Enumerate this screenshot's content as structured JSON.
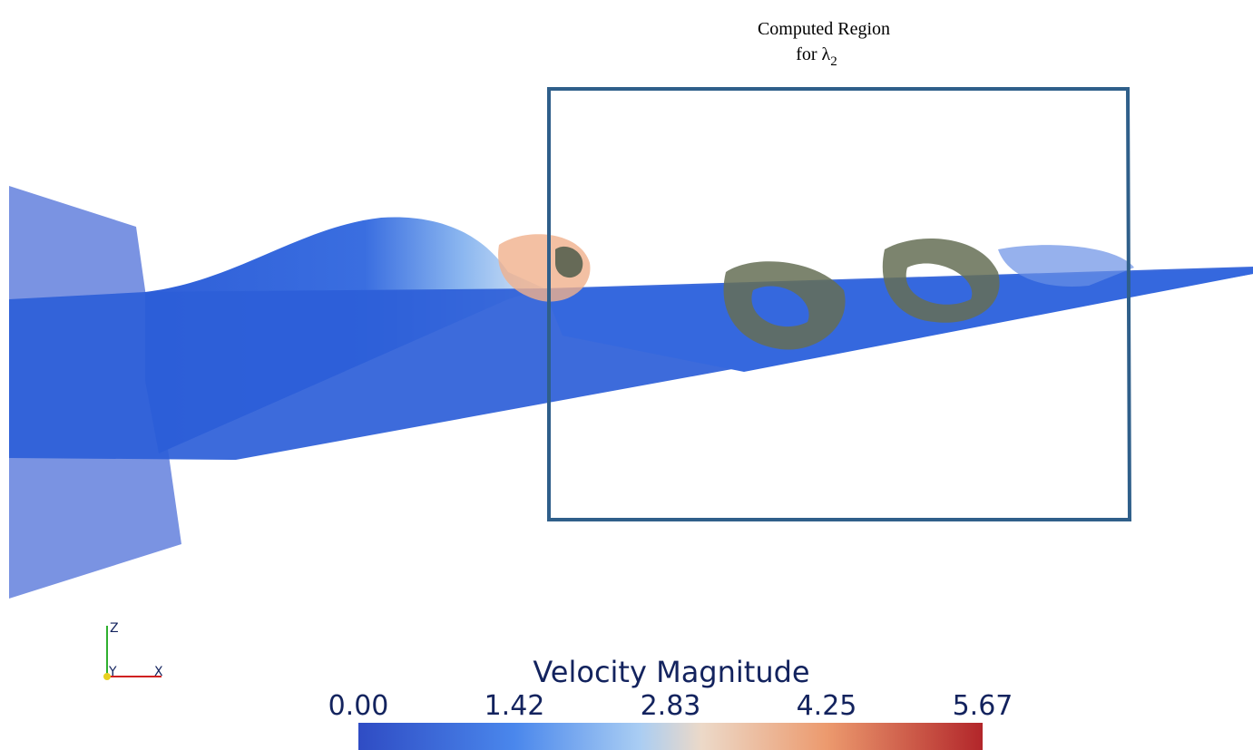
{
  "annotation": {
    "line1": "Computed Region",
    "line2": "for λ",
    "subscript": "2"
  },
  "colorbar": {
    "title": "Velocity Magnitude",
    "tick_labels": [
      "0.00",
      "1.42",
      "2.83",
      "4.25",
      "5.67"
    ]
  },
  "axes_triad": {
    "z": "Z",
    "y": "Y",
    "x": "X"
  }
}
